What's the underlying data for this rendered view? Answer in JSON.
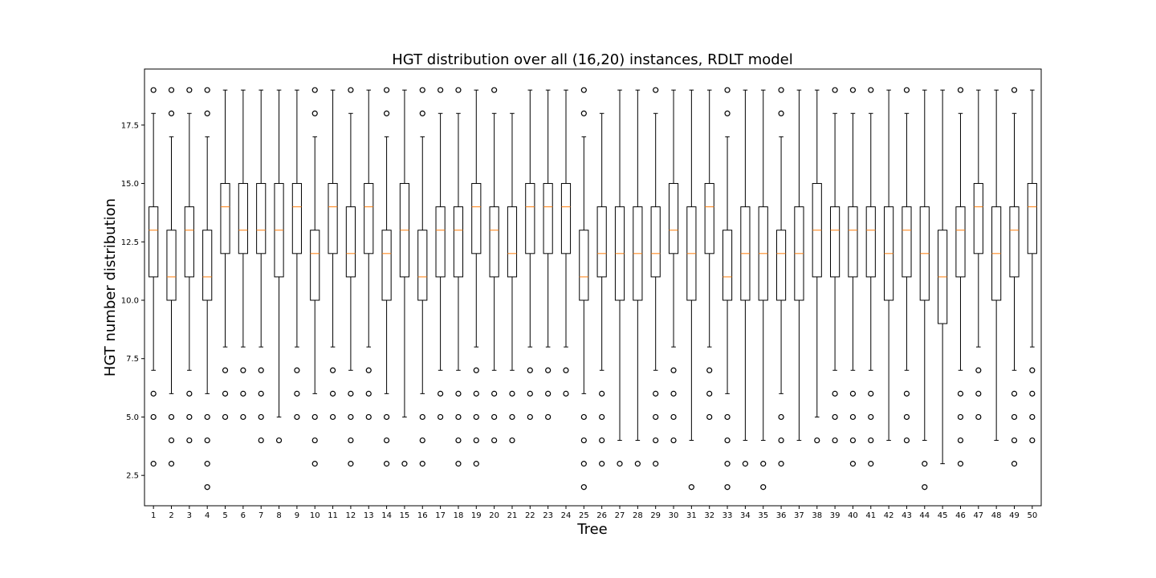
{
  "chart_data": {
    "type": "boxplot",
    "title": "HGT distribution over all (16,20) instances, RDLT model",
    "xlabel": "Tree",
    "ylabel": "HGT number distribution",
    "ylim": [
      1.2,
      19.9
    ],
    "yticks": [
      "2.5",
      "5.0",
      "7.5",
      "10.0",
      "12.5",
      "15.0",
      "17.5"
    ],
    "ytick_values": [
      2.5,
      5.0,
      7.5,
      10.0,
      12.5,
      15.0,
      17.5
    ],
    "colors": {
      "median": "#ff7f0e",
      "box": "#000000"
    },
    "grid": false,
    "categories": [
      "1",
      "2",
      "3",
      "4",
      "5",
      "6",
      "7",
      "8",
      "9",
      "10",
      "11",
      "12",
      "13",
      "14",
      "15",
      "16",
      "17",
      "18",
      "19",
      "20",
      "21",
      "22",
      "23",
      "24",
      "25",
      "26",
      "27",
      "28",
      "29",
      "30",
      "31",
      "32",
      "33",
      "34",
      "35",
      "36",
      "37",
      "38",
      "39",
      "40",
      "41",
      "42",
      "43",
      "44",
      "45",
      "46",
      "47",
      "48",
      "49",
      "50"
    ],
    "boxes": [
      {
        "whislo": 7,
        "q1": 11,
        "med": 13,
        "q3": 14,
        "whishi": 18,
        "fliers": [
          3,
          5,
          6,
          19
        ]
      },
      {
        "whislo": 6,
        "q1": 10,
        "med": 11,
        "q3": 13,
        "whishi": 17,
        "fliers": [
          3,
          4,
          5,
          18,
          19
        ]
      },
      {
        "whislo": 7,
        "q1": 11,
        "med": 13,
        "q3": 14,
        "whishi": 18,
        "fliers": [
          4,
          5,
          6,
          19
        ]
      },
      {
        "whislo": 6,
        "q1": 10,
        "med": 11,
        "q3": 13,
        "whishi": 17,
        "fliers": [
          2,
          3,
          4,
          5,
          18,
          19
        ]
      },
      {
        "whislo": 8,
        "q1": 12,
        "med": 14,
        "q3": 15,
        "whishi": 19,
        "fliers": [
          5,
          6,
          7
        ]
      },
      {
        "whislo": 8,
        "q1": 12,
        "med": 13,
        "q3": 15,
        "whishi": 19,
        "fliers": [
          5,
          6,
          7
        ]
      },
      {
        "whislo": 8,
        "q1": 12,
        "med": 13,
        "q3": 15,
        "whishi": 19,
        "fliers": [
          4,
          5,
          6,
          7
        ]
      },
      {
        "whislo": 5,
        "q1": 11,
        "med": 13,
        "q3": 15,
        "whishi": 19,
        "fliers": [
          4
        ]
      },
      {
        "whislo": 8,
        "q1": 12,
        "med": 14,
        "q3": 15,
        "whishi": 19,
        "fliers": [
          5,
          6,
          7
        ]
      },
      {
        "whislo": 6,
        "q1": 10,
        "med": 12,
        "q3": 13,
        "whishi": 17,
        "fliers": [
          3,
          4,
          5,
          18,
          19
        ]
      },
      {
        "whislo": 8,
        "q1": 12,
        "med": 14,
        "q3": 15,
        "whishi": 19,
        "fliers": [
          5,
          6,
          7
        ]
      },
      {
        "whislo": 7,
        "q1": 11,
        "med": 12,
        "q3": 14,
        "whishi": 18,
        "fliers": [
          3,
          4,
          5,
          6,
          19
        ]
      },
      {
        "whislo": 8,
        "q1": 12,
        "med": 14,
        "q3": 15,
        "whishi": 19,
        "fliers": [
          5,
          6,
          7
        ]
      },
      {
        "whislo": 6,
        "q1": 10,
        "med": 12,
        "q3": 13,
        "whishi": 17,
        "fliers": [
          3,
          4,
          5,
          18,
          19
        ]
      },
      {
        "whislo": 5,
        "q1": 11,
        "med": 13,
        "q3": 15,
        "whishi": 19,
        "fliers": [
          3
        ]
      },
      {
        "whislo": 6,
        "q1": 10,
        "med": 11,
        "q3": 13,
        "whishi": 17,
        "fliers": [
          3,
          4,
          5,
          18,
          19
        ]
      },
      {
        "whislo": 7,
        "q1": 11,
        "med": 13,
        "q3": 14,
        "whishi": 18,
        "fliers": [
          5,
          6,
          19
        ]
      },
      {
        "whislo": 7,
        "q1": 11,
        "med": 13,
        "q3": 14,
        "whishi": 18,
        "fliers": [
          3,
          4,
          5,
          6,
          19
        ]
      },
      {
        "whislo": 8,
        "q1": 12,
        "med": 14,
        "q3": 15,
        "whishi": 19,
        "fliers": [
          3,
          4,
          5,
          6,
          7
        ]
      },
      {
        "whislo": 7,
        "q1": 11,
        "med": 13,
        "q3": 14,
        "whishi": 18,
        "fliers": [
          4,
          5,
          6,
          19
        ]
      },
      {
        "whislo": 7,
        "q1": 11,
        "med": 12,
        "q3": 14,
        "whishi": 18,
        "fliers": [
          4,
          5,
          6
        ]
      },
      {
        "whislo": 8,
        "q1": 12,
        "med": 14,
        "q3": 15,
        "whishi": 19,
        "fliers": [
          5,
          6,
          7
        ]
      },
      {
        "whislo": 8,
        "q1": 12,
        "med": 14,
        "q3": 15,
        "whishi": 19,
        "fliers": [
          5,
          6,
          7
        ]
      },
      {
        "whislo": 8,
        "q1": 12,
        "med": 14,
        "q3": 15,
        "whishi": 19,
        "fliers": [
          6,
          7
        ]
      },
      {
        "whislo": 6,
        "q1": 10,
        "med": 11,
        "q3": 13,
        "whishi": 17,
        "fliers": [
          2,
          3,
          4,
          5,
          18,
          19
        ]
      },
      {
        "whislo": 7,
        "q1": 11,
        "med": 12,
        "q3": 14,
        "whishi": 18,
        "fliers": [
          3,
          4,
          5,
          6
        ]
      },
      {
        "whislo": 4,
        "q1": 10,
        "med": 12,
        "q3": 14,
        "whishi": 19,
        "fliers": [
          3
        ]
      },
      {
        "whislo": 4,
        "q1": 10,
        "med": 12,
        "q3": 14,
        "whishi": 19,
        "fliers": [
          3
        ]
      },
      {
        "whislo": 7,
        "q1": 11,
        "med": 12,
        "q3": 14,
        "whishi": 18,
        "fliers": [
          3,
          4,
          5,
          6,
          19
        ]
      },
      {
        "whislo": 8,
        "q1": 12,
        "med": 13,
        "q3": 15,
        "whishi": 19,
        "fliers": [
          4,
          5,
          6,
          7
        ]
      },
      {
        "whislo": 4,
        "q1": 10,
        "med": 12,
        "q3": 14,
        "whishi": 19,
        "fliers": [
          2
        ]
      },
      {
        "whislo": 8,
        "q1": 12,
        "med": 14,
        "q3": 15,
        "whishi": 19,
        "fliers": [
          5,
          6,
          7
        ]
      },
      {
        "whislo": 6,
        "q1": 10,
        "med": 11,
        "q3": 13,
        "whishi": 17,
        "fliers": [
          2,
          3,
          4,
          5,
          18,
          19
        ]
      },
      {
        "whislo": 4,
        "q1": 10,
        "med": 12,
        "q3": 14,
        "whishi": 19,
        "fliers": [
          3
        ]
      },
      {
        "whislo": 4,
        "q1": 10,
        "med": 12,
        "q3": 14,
        "whishi": 19,
        "fliers": [
          2,
          3
        ]
      },
      {
        "whislo": 6,
        "q1": 10,
        "med": 12,
        "q3": 13,
        "whishi": 17,
        "fliers": [
          3,
          4,
          5,
          18,
          19
        ]
      },
      {
        "whislo": 4,
        "q1": 10,
        "med": 12,
        "q3": 14,
        "whishi": 19,
        "fliers": []
      },
      {
        "whislo": 5,
        "q1": 11,
        "med": 13,
        "q3": 15,
        "whishi": 19,
        "fliers": [
          4
        ]
      },
      {
        "whislo": 7,
        "q1": 11,
        "med": 13,
        "q3": 14,
        "whishi": 18,
        "fliers": [
          4,
          5,
          6,
          19
        ]
      },
      {
        "whislo": 7,
        "q1": 11,
        "med": 13,
        "q3": 14,
        "whishi": 18,
        "fliers": [
          3,
          4,
          5,
          6,
          19
        ]
      },
      {
        "whislo": 7,
        "q1": 11,
        "med": 13,
        "q3": 14,
        "whishi": 18,
        "fliers": [
          3,
          4,
          5,
          6,
          19
        ]
      },
      {
        "whislo": 4,
        "q1": 10,
        "med": 12,
        "q3": 14,
        "whishi": 19,
        "fliers": []
      },
      {
        "whislo": 7,
        "q1": 11,
        "med": 13,
        "q3": 14,
        "whishi": 18,
        "fliers": [
          4,
          5,
          6,
          19
        ]
      },
      {
        "whislo": 4,
        "q1": 10,
        "med": 12,
        "q3": 14,
        "whishi": 19,
        "fliers": [
          2,
          3
        ]
      },
      {
        "whislo": 3,
        "q1": 9,
        "med": 11,
        "q3": 13,
        "whishi": 19,
        "fliers": []
      },
      {
        "whislo": 7,
        "q1": 11,
        "med": 13,
        "q3": 14,
        "whishi": 18,
        "fliers": [
          3,
          4,
          5,
          6,
          19
        ]
      },
      {
        "whislo": 8,
        "q1": 12,
        "med": 14,
        "q3": 15,
        "whishi": 19,
        "fliers": [
          5,
          6,
          7
        ]
      },
      {
        "whislo": 4,
        "q1": 10,
        "med": 12,
        "q3": 14,
        "whishi": 19,
        "fliers": []
      },
      {
        "whislo": 7,
        "q1": 11,
        "med": 13,
        "q3": 14,
        "whishi": 18,
        "fliers": [
          3,
          4,
          5,
          6,
          19
        ]
      },
      {
        "whislo": 8,
        "q1": 12,
        "med": 14,
        "q3": 15,
        "whishi": 19,
        "fliers": [
          4,
          5,
          6,
          7
        ]
      }
    ]
  }
}
